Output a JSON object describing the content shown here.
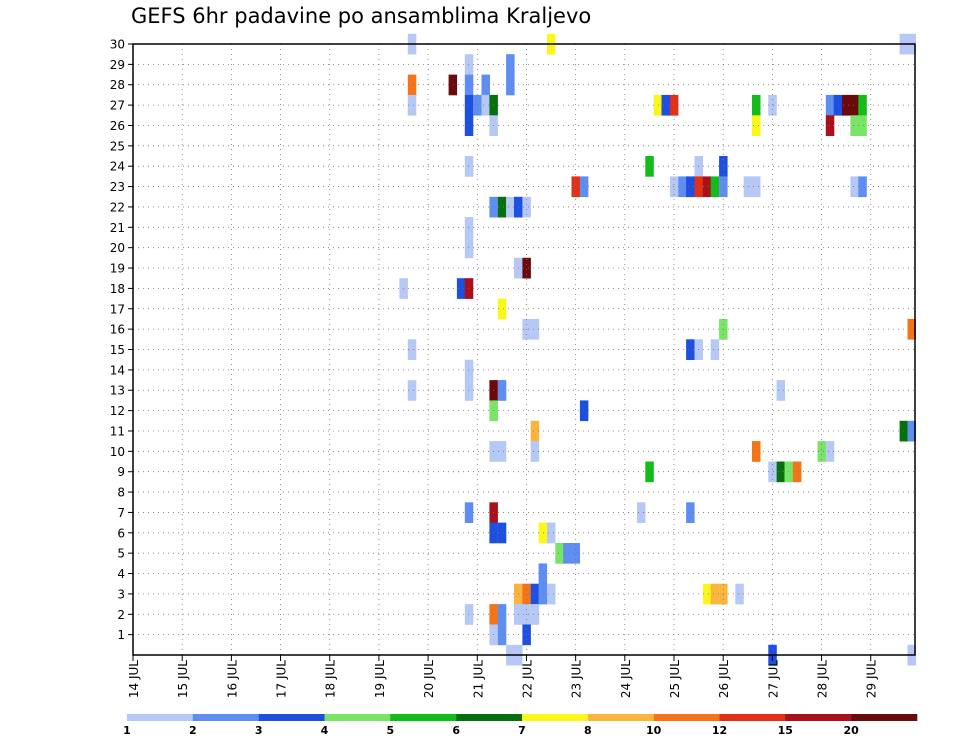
{
  "chart_data": {
    "type": "heatmap",
    "title": "GEFS 6hr padavine po ansamblima Kraljevo",
    "x_tick_labels": [
      "14 JUL",
      "15 JUL",
      "16 JUL",
      "17 JUL",
      "18 JUL",
      "19 JUL",
      "20 JUL",
      "21 JUL",
      "22 JUL",
      "23 JUL",
      "24 JUL",
      "25 JUL",
      "26 JUL",
      "27 JUL",
      "28 JUL",
      "29 JUL"
    ],
    "x_tick_days": [
      14,
      15,
      16,
      17,
      18,
      19,
      20,
      21,
      22,
      23,
      24,
      25,
      26,
      27,
      28,
      29
    ],
    "xlim": [
      14,
      29.9
    ],
    "y_tick_labels": [
      "1",
      "2",
      "3",
      "4",
      "5",
      "6",
      "7",
      "8",
      "9",
      "10",
      "11",
      "12",
      "13",
      "14",
      "15",
      "16",
      "17",
      "18",
      "19",
      "20",
      "21",
      "22",
      "23",
      "24",
      "25",
      "26",
      "27",
      "28",
      "29",
      "30"
    ],
    "ylim": [
      0,
      30
    ],
    "grid": true,
    "colorbar": {
      "labels": [
        "1",
        "2",
        "3",
        "4",
        "5",
        "6",
        "7",
        "8",
        "10",
        "12",
        "15",
        "20"
      ],
      "colors": [
        "#b6c8f5",
        "#5f8ef2",
        "#1d4fe0",
        "#79e465",
        "#12bd19",
        "#06700f",
        "#fbf719",
        "#fbb53c",
        "#f47417",
        "#e03015",
        "#a8101a",
        "#6b0a0d"
      ]
    },
    "cells": [
      {
        "day": 19.67,
        "m": 30,
        "c": 0
      },
      {
        "day": 22.5,
        "m": 30,
        "c": 6
      },
      {
        "day": 29.67,
        "m": 30,
        "c": 0
      },
      {
        "day": 29.83,
        "m": 30,
        "c": 0
      },
      {
        "day": 20.83,
        "m": 29,
        "c": 0
      },
      {
        "day": 21.67,
        "m": 29,
        "c": 1
      },
      {
        "day": 19.67,
        "m": 28,
        "c": 8
      },
      {
        "day": 20.5,
        "m": 28,
        "c": 11
      },
      {
        "day": 20.83,
        "m": 28,
        "c": 1
      },
      {
        "day": 21.17,
        "m": 28,
        "c": 1
      },
      {
        "day": 21.67,
        "m": 28,
        "c": 1
      },
      {
        "day": 19.67,
        "m": 27,
        "c": 0
      },
      {
        "day": 20.83,
        "m": 27,
        "c": 2
      },
      {
        "day": 21.0,
        "m": 27,
        "c": 1
      },
      {
        "day": 21.17,
        "m": 27,
        "c": 0
      },
      {
        "day": 21.33,
        "m": 27,
        "c": 5
      },
      {
        "day": 24.67,
        "m": 27,
        "c": 6
      },
      {
        "day": 24.83,
        "m": 27,
        "c": 2
      },
      {
        "day": 25.0,
        "m": 27,
        "c": 9
      },
      {
        "day": 26.67,
        "m": 27,
        "c": 4
      },
      {
        "day": 27.0,
        "m": 27,
        "c": 0
      },
      {
        "day": 28.17,
        "m": 27,
        "c": 1
      },
      {
        "day": 28.33,
        "m": 27,
        "c": 2
      },
      {
        "day": 28.5,
        "m": 27,
        "c": 11
      },
      {
        "day": 28.67,
        "m": 27,
        "c": 11
      },
      {
        "day": 28.83,
        "m": 27,
        "c": 4
      },
      {
        "day": 20.83,
        "m": 26,
        "c": 2
      },
      {
        "day": 21.33,
        "m": 26,
        "c": 0
      },
      {
        "day": 26.67,
        "m": 26,
        "c": 6
      },
      {
        "day": 28.17,
        "m": 26,
        "c": 10
      },
      {
        "day": 28.67,
        "m": 26,
        "c": 3
      },
      {
        "day": 28.83,
        "m": 26,
        "c": 3
      },
      {
        "day": 20.83,
        "m": 24,
        "c": 0
      },
      {
        "day": 24.5,
        "m": 24,
        "c": 4
      },
      {
        "day": 25.5,
        "m": 24,
        "c": 0
      },
      {
        "day": 26.0,
        "m": 24,
        "c": 2
      },
      {
        "day": 23.0,
        "m": 23,
        "c": 9
      },
      {
        "day": 23.17,
        "m": 23,
        "c": 1
      },
      {
        "day": 25.0,
        "m": 23,
        "c": 0
      },
      {
        "day": 25.17,
        "m": 23,
        "c": 1
      },
      {
        "day": 25.33,
        "m": 23,
        "c": 2
      },
      {
        "day": 25.5,
        "m": 23,
        "c": 9
      },
      {
        "day": 25.67,
        "m": 23,
        "c": 10
      },
      {
        "day": 25.83,
        "m": 23,
        "c": 4
      },
      {
        "day": 26.0,
        "m": 23,
        "c": 1
      },
      {
        "day": 26.5,
        "m": 23,
        "c": 0
      },
      {
        "day": 26.67,
        "m": 23,
        "c": 0
      },
      {
        "day": 28.67,
        "m": 23,
        "c": 0
      },
      {
        "day": 28.83,
        "m": 23,
        "c": 1
      },
      {
        "day": 21.33,
        "m": 22,
        "c": 1
      },
      {
        "day": 21.5,
        "m": 22,
        "c": 5
      },
      {
        "day": 21.67,
        "m": 22,
        "c": 0
      },
      {
        "day": 21.83,
        "m": 22,
        "c": 2
      },
      {
        "day": 22.0,
        "m": 22,
        "c": 0
      },
      {
        "day": 20.83,
        "m": 21,
        "c": 0
      },
      {
        "day": 20.83,
        "m": 20,
        "c": 0
      },
      {
        "day": 21.83,
        "m": 19,
        "c": 0
      },
      {
        "day": 22.0,
        "m": 19,
        "c": 11
      },
      {
        "day": 19.5,
        "m": 18,
        "c": 0
      },
      {
        "day": 20.67,
        "m": 18,
        "c": 2
      },
      {
        "day": 20.83,
        "m": 18,
        "c": 10
      },
      {
        "day": 21.5,
        "m": 17,
        "c": 6
      },
      {
        "day": 22.0,
        "m": 16,
        "c": 0
      },
      {
        "day": 22.17,
        "m": 16,
        "c": 0
      },
      {
        "day": 26.0,
        "m": 16,
        "c": 3
      },
      {
        "day": 29.83,
        "m": 16,
        "c": 8
      },
      {
        "day": 19.67,
        "m": 15,
        "c": 0
      },
      {
        "day": 25.33,
        "m": 15,
        "c": 2
      },
      {
        "day": 25.5,
        "m": 15,
        "c": 0
      },
      {
        "day": 25.83,
        "m": 15,
        "c": 0
      },
      {
        "day": 20.83,
        "m": 14,
        "c": 0
      },
      {
        "day": 19.67,
        "m": 13,
        "c": 0
      },
      {
        "day": 20.83,
        "m": 13,
        "c": 0
      },
      {
        "day": 21.33,
        "m": 13,
        "c": 11
      },
      {
        "day": 21.5,
        "m": 13,
        "c": 1
      },
      {
        "day": 27.17,
        "m": 13,
        "c": 0
      },
      {
        "day": 21.33,
        "m": 12,
        "c": 3
      },
      {
        "day": 23.17,
        "m": 12,
        "c": 2
      },
      {
        "day": 22.17,
        "m": 11,
        "c": 7
      },
      {
        "day": 29.67,
        "m": 11,
        "c": 5
      },
      {
        "day": 29.83,
        "m": 11,
        "c": 1
      },
      {
        "day": 21.33,
        "m": 10,
        "c": 0
      },
      {
        "day": 21.5,
        "m": 10,
        "c": 0
      },
      {
        "day": 22.17,
        "m": 10,
        "c": 0
      },
      {
        "day": 26.67,
        "m": 10,
        "c": 8
      },
      {
        "day": 28.0,
        "m": 10,
        "c": 3
      },
      {
        "day": 28.17,
        "m": 10,
        "c": 0
      },
      {
        "day": 24.5,
        "m": 9,
        "c": 4
      },
      {
        "day": 27.0,
        "m": 9,
        "c": 0
      },
      {
        "day": 27.17,
        "m": 9,
        "c": 5
      },
      {
        "day": 27.33,
        "m": 9,
        "c": 3
      },
      {
        "day": 27.5,
        "m": 9,
        "c": 8
      },
      {
        "day": 20.83,
        "m": 7,
        "c": 1
      },
      {
        "day": 21.33,
        "m": 7,
        "c": 10
      },
      {
        "day": 24.33,
        "m": 7,
        "c": 0
      },
      {
        "day": 25.33,
        "m": 7,
        "c": 1
      },
      {
        "day": 21.33,
        "m": 6,
        "c": 2
      },
      {
        "day": 21.5,
        "m": 6,
        "c": 2
      },
      {
        "day": 22.33,
        "m": 6,
        "c": 6
      },
      {
        "day": 22.5,
        "m": 6,
        "c": 0
      },
      {
        "day": 22.67,
        "m": 5,
        "c": 3
      },
      {
        "day": 22.83,
        "m": 5,
        "c": 1
      },
      {
        "day": 23.0,
        "m": 5,
        "c": 1
      },
      {
        "day": 22.33,
        "m": 4,
        "c": 1
      },
      {
        "day": 21.83,
        "m": 3,
        "c": 7
      },
      {
        "day": 22.0,
        "m": 3,
        "c": 8
      },
      {
        "day": 22.17,
        "m": 3,
        "c": 2
      },
      {
        "day": 22.33,
        "m": 3,
        "c": 1
      },
      {
        "day": 22.5,
        "m": 3,
        "c": 0
      },
      {
        "day": 25.67,
        "m": 3,
        "c": 6
      },
      {
        "day": 25.83,
        "m": 3,
        "c": 7
      },
      {
        "day": 26.0,
        "m": 3,
        "c": 7
      },
      {
        "day": 26.33,
        "m": 3,
        "c": 0
      },
      {
        "day": 20.83,
        "m": 2,
        "c": 0
      },
      {
        "day": 21.33,
        "m": 2,
        "c": 8
      },
      {
        "day": 21.5,
        "m": 2,
        "c": 1
      },
      {
        "day": 21.83,
        "m": 2,
        "c": 0
      },
      {
        "day": 22.0,
        "m": 2,
        "c": 0
      },
      {
        "day": 22.17,
        "m": 2,
        "c": 0
      },
      {
        "day": 21.33,
        "m": 1,
        "c": 0
      },
      {
        "day": 21.5,
        "m": 1,
        "c": 1
      },
      {
        "day": 22.0,
        "m": 1,
        "c": 2
      },
      {
        "day": 21.83,
        "m": 0,
        "c": 0
      },
      {
        "day": 21.67,
        "m": 0,
        "c": 0
      },
      {
        "day": 27.0,
        "m": 0,
        "c": 2
      },
      {
        "day": 29.83,
        "m": 0,
        "c": 0
      }
    ]
  }
}
